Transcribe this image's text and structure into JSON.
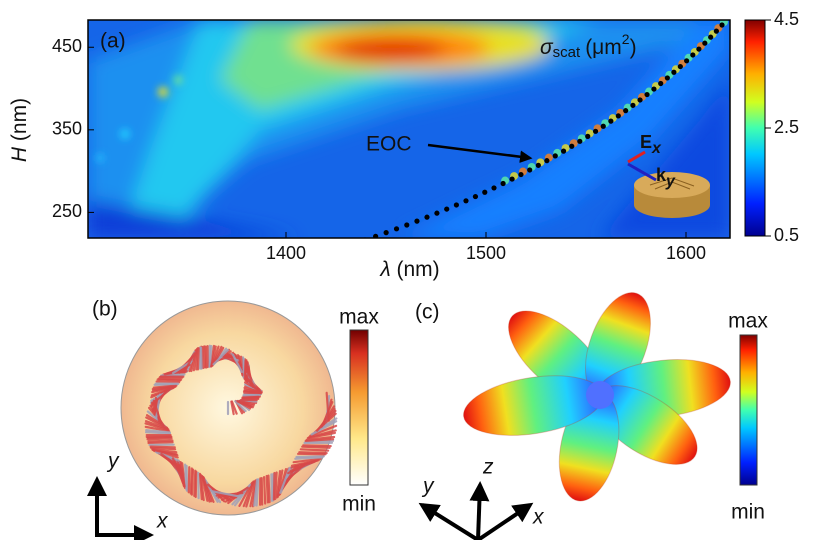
{
  "panel_a": {
    "label": "(a)",
    "x_label": {
      "symbol": "λ",
      "unit": "(nm)"
    },
    "y_label": {
      "symbol": "H",
      "unit": "(nm)"
    },
    "xlim": [
      1301,
      1622
    ],
    "xticks": [
      1400,
      1500,
      1600
    ],
    "ylim": [
      219,
      483
    ],
    "yticks": [
      250,
      350,
      450
    ],
    "clim": [
      0.5,
      4.5
    ],
    "colorbar_ticks": [
      0.5,
      2.5,
      4.5
    ],
    "colorbar_label": {
      "symbol": "σ",
      "sub": "scat",
      "unit": "(μm",
      "sup": "2",
      "close": ")"
    },
    "annotation": "EOC",
    "field_e": {
      "main": "E",
      "sub": "x"
    },
    "field_k": {
      "main": "k",
      "sub": "y"
    }
  },
  "panel_b": {
    "label": "(b)",
    "colorbar_max": "max",
    "colorbar_min": "min",
    "axis_y": "y",
    "axis_x": "x"
  },
  "panel_c": {
    "label": "(c)",
    "colorbar_max": "max",
    "colorbar_min": "min",
    "axis_x": "x",
    "axis_y": "y",
    "axis_z": "z"
  }
}
